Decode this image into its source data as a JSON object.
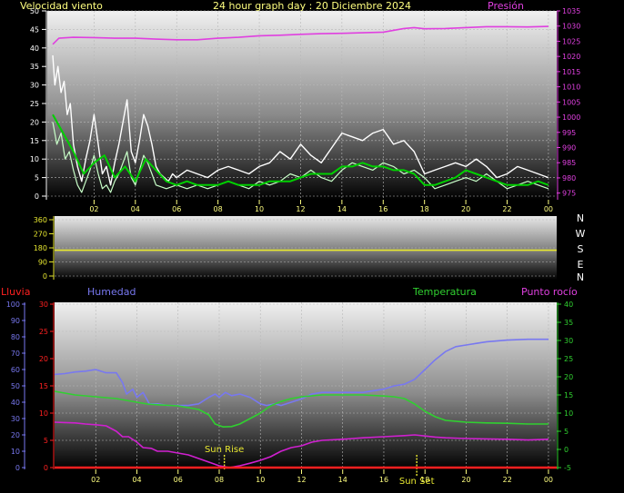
{
  "header": {
    "wind_label": "Velocidad viento",
    "title": "24 hour graph day : 20 Diciembre 2024",
    "pressure_label": "Presión"
  },
  "compass": [
    "N",
    "W",
    "S",
    "E",
    "N"
  ],
  "lower_labels": {
    "rain": "Lluvia",
    "humidity": "Humedad",
    "temperature": "Temperatura",
    "dewpoint": "Punto rocío",
    "sunrise": "Sun Rise",
    "sunset": "Sun Set"
  },
  "colors": {
    "wind_gust": "#ffffff",
    "wind_speed": "#c8ffc8",
    "wind_avg": "#00d000",
    "pressure": "#e040e0",
    "direction": "#e8e830",
    "humidity": "#7878f0",
    "temperature": "#30d030",
    "dewpoint": "#d020d0",
    "rain": "#ff2020",
    "sun": "#e8e830",
    "header_text": "#ffff80",
    "wind_axis": "#ffffff",
    "pressure_axis": "#e040e0",
    "hour_axis": "#ffff80",
    "rain_axis": "#ff2020",
    "humidity_axis": "#7878f0",
    "temp_axis": "#30d030"
  },
  "chart_data": [
    {
      "name": "wind_pressure",
      "type": "line",
      "x_ticks": [
        "02",
        "04",
        "06",
        "08",
        "10",
        "12",
        "14",
        "16",
        "18",
        "20",
        "22",
        "00"
      ],
      "x_range_hours": [
        0,
        24.4
      ],
      "y_left_ticks": [
        0,
        5,
        10,
        15,
        20,
        25,
        30,
        35,
        40,
        45,
        50
      ],
      "y_left_range": [
        0,
        50
      ],
      "y_right_ticks": [
        975,
        980,
        985,
        990,
        995,
        1000,
        1005,
        1010,
        1015,
        1020,
        1025,
        1030,
        1035
      ],
      "y_right_range": [
        974,
        1035
      ],
      "series": [
        {
          "key": "wind_gust",
          "hours": [
            0,
            0.1,
            0.25,
            0.4,
            0.55,
            0.7,
            0.85,
            1,
            1.2,
            1.4,
            1.6,
            1.8,
            2,
            2.2,
            2.4,
            2.6,
            2.8,
            3,
            3.2,
            3.4,
            3.6,
            3.8,
            4,
            4.2,
            4.4,
            4.6,
            4.8,
            5,
            5.2,
            5.4,
            5.6,
            5.8,
            6,
            6.5,
            7,
            7.5,
            8,
            8.5,
            9,
            9.5,
            10,
            10.5,
            11,
            11.5,
            12,
            12.5,
            13,
            13.5,
            14,
            14.5,
            15,
            15.5,
            16,
            16.5,
            17,
            17.5,
            18,
            18.5,
            19,
            19.5,
            20,
            20.5,
            21,
            21.5,
            22,
            22.5,
            23,
            23.5,
            24
          ],
          "values": [
            38,
            30,
            35,
            28,
            31,
            22,
            25,
            14,
            8,
            4,
            10,
            15,
            22,
            14,
            6,
            8,
            3,
            9,
            14,
            20,
            26,
            12,
            9,
            15,
            22,
            19,
            14,
            8,
            6,
            5,
            4,
            6,
            5,
            7,
            6,
            5,
            7,
            8,
            7,
            6,
            8,
            9,
            12,
            10,
            14,
            11,
            9,
            13,
            17,
            16,
            15,
            17,
            18,
            14,
            15,
            12,
            6,
            7,
            8,
            9,
            8,
            10,
            8,
            5,
            6,
            8,
            7,
            6,
            5
          ]
        },
        {
          "key": "wind_speed",
          "hours": [
            0,
            0.2,
            0.4,
            0.6,
            0.8,
            1,
            1.2,
            1.4,
            1.6,
            1.8,
            2,
            2.2,
            2.4,
            2.6,
            2.8,
            3,
            3.2,
            3.4,
            3.6,
            3.8,
            4,
            4.2,
            4.4,
            4.6,
            4.8,
            5,
            5.5,
            6,
            6.5,
            7,
            7.5,
            8,
            8.5,
            9,
            9.5,
            10,
            10.5,
            11,
            11.5,
            12,
            12.5,
            13,
            13.5,
            14,
            14.5,
            15,
            15.5,
            16,
            16.5,
            17,
            17.5,
            18,
            18.5,
            19,
            19.5,
            20,
            20.5,
            21,
            21.5,
            22,
            22.5,
            23,
            23.5,
            24
          ],
          "values": [
            20,
            14,
            17,
            10,
            12,
            7,
            3,
            1,
            4,
            7,
            11,
            6,
            2,
            3,
            1,
            4,
            6,
            9,
            12,
            5,
            3,
            7,
            11,
            9,
            6,
            3,
            2,
            3,
            2,
            3,
            2,
            3,
            4,
            3,
            2,
            4,
            3,
            4,
            6,
            5,
            7,
            5,
            4,
            7,
            9,
            8,
            7,
            9,
            8,
            6,
            7,
            5,
            2,
            3,
            4,
            5,
            4,
            6,
            4,
            2,
            3,
            4,
            3,
            2
          ]
        },
        {
          "key": "wind_avg",
          "hours": [
            0,
            0.5,
            1,
            1.5,
            2,
            2.5,
            3,
            3.5,
            4,
            4.5,
            5,
            5.5,
            6,
            6.5,
            7,
            7.5,
            8,
            8.5,
            9,
            9.5,
            10,
            10.5,
            11,
            11.5,
            12,
            12.5,
            13,
            13.5,
            14,
            14.5,
            15,
            15.5,
            16,
            16.5,
            17,
            17.5,
            18,
            18.5,
            19,
            19.5,
            20,
            20.5,
            21,
            21.5,
            22,
            22.5,
            23,
            23.5,
            24
          ],
          "values": [
            22,
            17,
            12,
            6,
            9,
            11,
            5,
            8,
            4,
            10,
            7,
            4,
            3,
            4,
            3,
            3,
            3,
            4,
            3,
            3,
            3,
            4,
            4,
            4,
            5,
            6,
            6,
            6,
            8,
            8,
            9,
            8,
            8,
            7,
            7,
            6,
            3,
            3,
            4,
            5,
            7,
            6,
            5,
            4,
            3,
            3,
            3,
            4,
            3
          ]
        },
        {
          "key": "pressure",
          "hours": [
            0,
            0.3,
            1,
            2,
            3,
            4,
            5,
            6,
            7,
            8,
            9,
            10,
            11,
            12,
            13,
            14,
            15,
            16,
            16.5,
            17,
            17.5,
            18,
            19,
            20,
            21,
            22,
            23,
            24
          ],
          "values": [
            1024,
            1026,
            1026.3,
            1026.2,
            1026,
            1026,
            1025.7,
            1025.5,
            1025.5,
            1026,
            1026.3,
            1026.8,
            1027,
            1027.3,
            1027.5,
            1027.6,
            1027.8,
            1028,
            1028.6,
            1029.2,
            1029.5,
            1029.1,
            1029.2,
            1029.5,
            1029.8,
            1029.8,
            1029.7,
            1029.9
          ]
        }
      ]
    },
    {
      "name": "wind_direction",
      "type": "line",
      "x_range_hours": [
        0,
        24.4
      ],
      "y_ticks": [
        0,
        90,
        180,
        270,
        360
      ],
      "y_range": [
        0,
        360
      ],
      "series": [
        {
          "key": "direction",
          "hours": [
            0,
            24.4
          ],
          "values": [
            165,
            165
          ]
        }
      ]
    },
    {
      "name": "temp_humidity",
      "type": "line",
      "x_ticks": [
        "02",
        "04",
        "06",
        "08",
        "10",
        "12",
        "14",
        "16",
        "18",
        "20",
        "22",
        "00"
      ],
      "x_range_hours": [
        0,
        24.4
      ],
      "y_rain_ticks": [
        0,
        5,
        10,
        15,
        20,
        25,
        30
      ],
      "y_rain_range": [
        0,
        30
      ],
      "y_humidity_ticks": [
        0,
        10,
        20,
        30,
        40,
        50,
        60,
        70,
        80,
        90,
        100
      ],
      "y_humidity_range": [
        0,
        100
      ],
      "y_temp_ticks": [
        -5,
        0,
        5,
        10,
        15,
        20,
        25,
        30,
        35,
        40
      ],
      "y_temp_range": [
        -5,
        40
      ],
      "sunrise_hour": 8.25,
      "sunset_hour": 17.6,
      "series": [
        {
          "key": "humidity",
          "hours": [
            0,
            0.5,
            1,
            1.5,
            2,
            2.5,
            3,
            3.3,
            3.5,
            3.8,
            4,
            4.3,
            4.6,
            5,
            5.5,
            6,
            6.5,
            7,
            7.5,
            7.8,
            8,
            8.3,
            8.6,
            9,
            9.5,
            10,
            10.3,
            10.7,
            11,
            11.5,
            12,
            12.5,
            13,
            14,
            15,
            16,
            16.5,
            17,
            17.5,
            18,
            18.5,
            19,
            19.5,
            20,
            20.5,
            21,
            22,
            23,
            24
          ],
          "values": [
            57,
            57.5,
            58.5,
            59,
            60,
            58,
            58,
            52,
            45,
            48,
            43,
            46,
            39,
            39,
            38,
            38,
            38,
            39,
            43,
            45,
            43,
            46,
            44,
            45,
            43,
            39,
            38,
            39,
            38,
            40,
            42,
            45,
            46,
            46,
            46,
            48,
            50,
            51,
            54,
            60,
            66,
            71,
            74,
            75,
            76,
            77,
            78,
            78.5,
            78.5
          ]
        },
        {
          "key": "temperature",
          "hours": [
            0,
            1,
            2,
            3,
            4,
            4.5,
            5,
            6,
            7,
            7.5,
            7.8,
            8.2,
            8.6,
            9,
            9.5,
            10,
            10.5,
            11,
            11.5,
            12,
            13,
            14,
            15,
            16,
            16.5,
            17,
            17.5,
            18,
            18.5,
            19,
            20,
            21,
            22,
            23,
            24
          ],
          "values": [
            16,
            15,
            14.5,
            14,
            13,
            12.5,
            12.3,
            12,
            11,
            9.5,
            7,
            6.2,
            6.3,
            7,
            8.5,
            10,
            12,
            13.2,
            14,
            14.5,
            15,
            15,
            15,
            14.7,
            14.5,
            14,
            12.5,
            10.5,
            9,
            8,
            7.5,
            7.3,
            7.2,
            7,
            7
          ]
        },
        {
          "key": "dewpoint",
          "hours": [
            0,
            0.5,
            1,
            1.5,
            2,
            2.5,
            3,
            3.3,
            3.6,
            4,
            4.3,
            4.7,
            5,
            5.5,
            6,
            6.5,
            7,
            7.5,
            8,
            8.5,
            9,
            9.5,
            10,
            10.5,
            11,
            11.5,
            12,
            12.5,
            13,
            14,
            15,
            16,
            17,
            17.5,
            18,
            18.5,
            19,
            20,
            21,
            22,
            23,
            24
          ],
          "values": [
            7.5,
            7.4,
            7.3,
            7,
            6.8,
            6.5,
            5,
            3.5,
            3.5,
            2,
            0.5,
            0.3,
            -0.5,
            -0.5,
            -1,
            -1.5,
            -2.5,
            -3.5,
            -4.5,
            -5,
            -4.5,
            -3.8,
            -3,
            -2,
            -0.5,
            0.5,
            1,
            2,
            2.5,
            2.8,
            3.2,
            3.5,
            3.8,
            4,
            3.7,
            3.4,
            3.2,
            3,
            2.9,
            2.8,
            2.6,
            2.8
          ]
        },
        {
          "key": "rain",
          "hours": [
            0,
            24.4
          ],
          "values": [
            0,
            0
          ]
        }
      ]
    }
  ]
}
